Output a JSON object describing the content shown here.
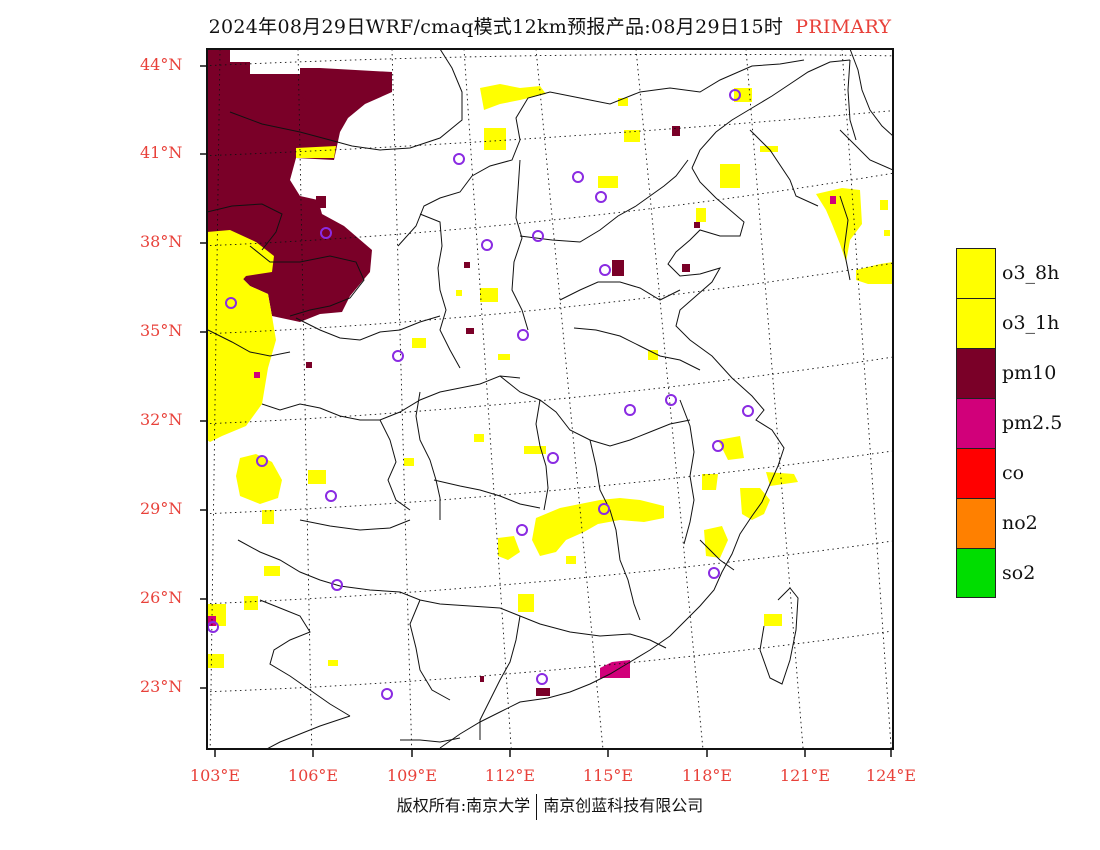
{
  "title": {
    "main": "2024年08月29日WRF/cmaq模式12km预报产品:08月29日15时",
    "tag": "PRIMARY"
  },
  "axes": {
    "lat_labels": [
      "44°N",
      "41°N",
      "38°N",
      "35°N",
      "32°N",
      "29°N",
      "26°N",
      "23°N"
    ],
    "lon_labels": [
      "103°E",
      "106°E",
      "109°E",
      "112°E",
      "115°E",
      "118°E",
      "121°E",
      "124°E"
    ]
  },
  "legend": [
    {
      "label": "o3_8h",
      "color": "#ffff00"
    },
    {
      "label": "o3_1h",
      "color": "#ffff00"
    },
    {
      "label": "pm10",
      "color": "#7a0028"
    },
    {
      "label": "pm2.5",
      "color": "#d1007a"
    },
    {
      "label": "co",
      "color": "#ff0000"
    },
    {
      "label": "no2",
      "color": "#ff8000"
    },
    {
      "label": "so2",
      "color": "#00dd00"
    }
  ],
  "footer": {
    "left": "版权所有:南京大学",
    "right": "南京创蓝科技有限公司"
  },
  "colors": {
    "title_accent": "#e8413a",
    "axis_label": "#e8413a",
    "marker": "#8a2be2"
  }
}
